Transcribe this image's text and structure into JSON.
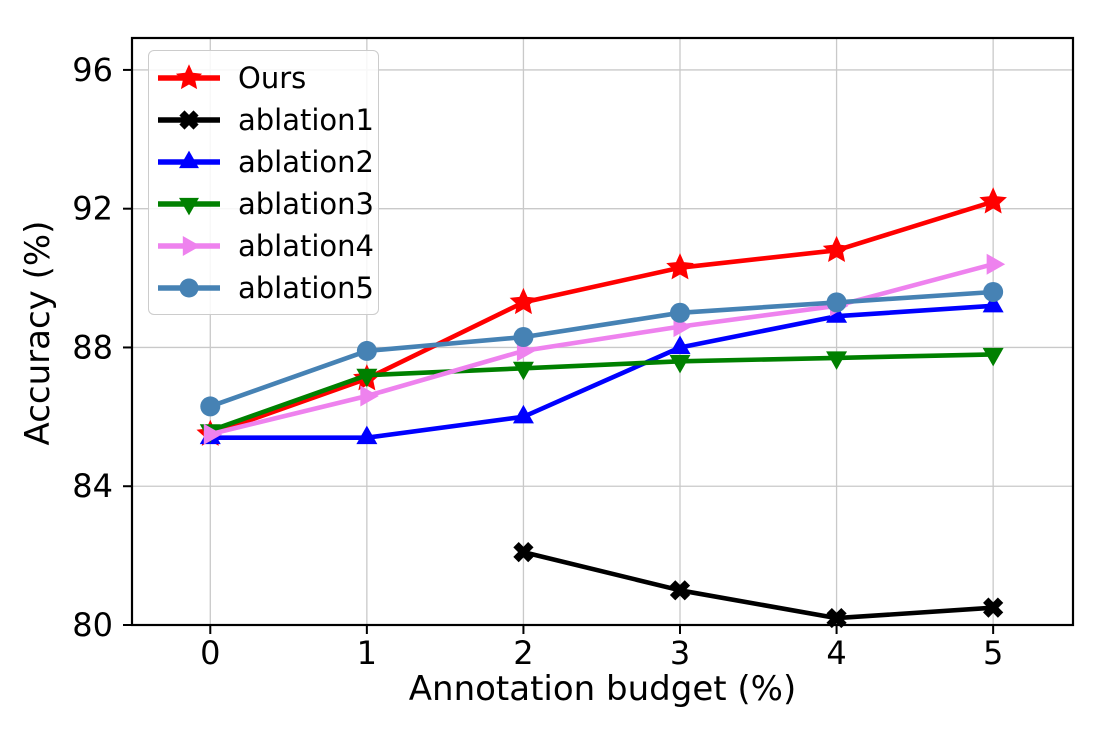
{
  "chart_data": {
    "type": "line",
    "title": "",
    "xlabel": "Annotation budget (%)",
    "ylabel": "Accuracy (%)",
    "x_ticks": [
      0,
      1,
      2,
      3,
      4,
      5
    ],
    "x_tick_labels": [
      "0",
      "1",
      "2",
      "3",
      "4",
      "5"
    ],
    "y_ticks": [
      80,
      84,
      88,
      92,
      96
    ],
    "y_tick_labels": [
      "80",
      "84",
      "88",
      "92",
      "96"
    ],
    "xlim": [
      -0.5,
      5.51
    ],
    "ylim": [
      80,
      96.92
    ],
    "grid": true,
    "legend_position": "upper left",
    "background": "#ffffff",
    "grid_color": "#c9c9c9",
    "spine_color": "#000000",
    "series": [
      {
        "name": "Ours",
        "color": "#ff0000",
        "marker": "star",
        "x": [
          0,
          1,
          2,
          3,
          4,
          5
        ],
        "y": [
          85.5,
          87.1,
          89.3,
          90.3,
          90.8,
          92.2
        ]
      },
      {
        "name": "ablation1",
        "color": "#000000",
        "marker": "x-filled",
        "x": [
          2,
          3,
          4,
          5
        ],
        "y": [
          82.1,
          81.0,
          80.2,
          80.5
        ]
      },
      {
        "name": "ablation2",
        "color": "#0000ff",
        "marker": "triangle-up",
        "x": [
          0,
          1,
          2,
          3,
          4,
          5
        ],
        "y": [
          85.4,
          85.4,
          86.0,
          88.0,
          88.9,
          89.2
        ]
      },
      {
        "name": "ablation3",
        "color": "#008000",
        "marker": "triangle-down",
        "x": [
          0,
          1,
          2,
          3,
          4,
          5
        ],
        "y": [
          85.6,
          87.2,
          87.4,
          87.6,
          87.7,
          87.8
        ]
      },
      {
        "name": "ablation4",
        "color": "#ee82ee",
        "marker": "triangle-right",
        "x": [
          0,
          1,
          2,
          3,
          4,
          5
        ],
        "y": [
          85.5,
          86.6,
          87.9,
          88.6,
          89.2,
          90.4
        ]
      },
      {
        "name": "ablation5",
        "color": "#4682b4",
        "marker": "circle",
        "x": [
          0,
          1,
          2,
          3,
          4,
          5
        ],
        "y": [
          86.3,
          87.9,
          88.3,
          89.0,
          89.3,
          89.6
        ]
      }
    ]
  }
}
